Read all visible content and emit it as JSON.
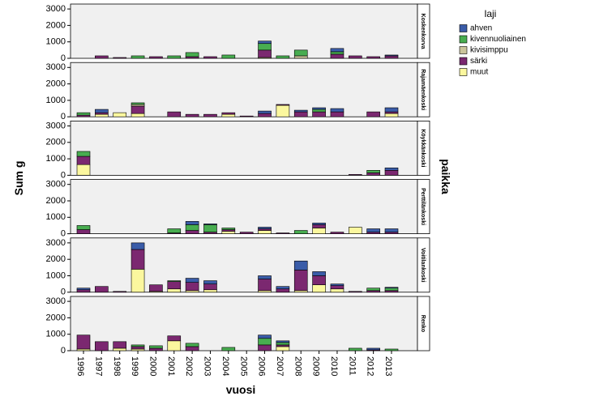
{
  "chart_data": {
    "type": "bar",
    "stacked": true,
    "y_label": "Sum g",
    "x_label": "vuosi",
    "facet_label": "paikka",
    "legend_title": "laji",
    "categories": [
      "1996",
      "1997",
      "1998",
      "1999",
      "2000",
      "2001",
      "2002",
      "2003",
      "2004",
      "2005",
      "2006",
      "2007",
      "2008",
      "2009",
      "2010",
      "2011",
      "2012",
      "2013"
    ],
    "series": [
      {
        "name": "ahven",
        "color": "#3a5ca8"
      },
      {
        "name": "kivennuoliainen",
        "color": "#48ad50"
      },
      {
        "name": "kivisimppu",
        "color": "#cbc59c"
      },
      {
        "name": "särki",
        "color": "#7b2870"
      },
      {
        "name": "muut",
        "color": "#fbf79e"
      }
    ],
    "ylim": [
      0,
      3300
    ],
    "yticks": [
      0,
      1000,
      2000,
      3000
    ],
    "facets": [
      {
        "title": "Koskenkorva",
        "series": [
          {
            "values": [
              0,
              0,
              0,
              0,
              0,
              0,
              0,
              0,
              0,
              0,
              150,
              0,
              0,
              0,
              200,
              0,
              0,
              50
            ]
          },
          {
            "values": [
              0,
              0,
              0,
              150,
              0,
              150,
              250,
              0,
              200,
              0,
              400,
              150,
              350,
              0,
              150,
              0,
              0,
              0
            ]
          },
          {
            "values": [
              0,
              0,
              0,
              0,
              0,
              0,
              0,
              0,
              0,
              0,
              0,
              0,
              150,
              0,
              0,
              0,
              0,
              0
            ]
          },
          {
            "values": [
              0,
              150,
              50,
              0,
              100,
              0,
              100,
              100,
              0,
              0,
              450,
              0,
              0,
              0,
              250,
              150,
              100,
              150
            ]
          },
          {
            "values": [
              0,
              0,
              0,
              0,
              0,
              0,
              0,
              0,
              0,
              0,
              50,
              0,
              0,
              0,
              0,
              0,
              0,
              0
            ]
          }
        ]
      },
      {
        "title": "Rajamäenkoski",
        "series": [
          {
            "values": [
              0,
              200,
              0,
              0,
              0,
              0,
              0,
              0,
              0,
              0,
              150,
              0,
              100,
              100,
              200,
              0,
              0,
              250
            ]
          },
          {
            "values": [
              150,
              0,
              0,
              100,
              0,
              0,
              0,
              0,
              0,
              0,
              0,
              0,
              0,
              150,
              0,
              0,
              0,
              0
            ]
          },
          {
            "values": [
              0,
              0,
              0,
              100,
              0,
              0,
              0,
              0,
              0,
              0,
              0,
              0,
              0,
              0,
              0,
              0,
              0,
              0
            ]
          },
          {
            "values": [
              100,
              100,
              0,
              450,
              0,
              300,
              150,
              150,
              100,
              50,
              200,
              50,
              300,
              300,
              300,
              0,
              300,
              100
            ]
          },
          {
            "values": [
              0,
              150,
              250,
              200,
              0,
              0,
              0,
              0,
              150,
              0,
              0,
              700,
              0,
              0,
              0,
              0,
              0,
              200
            ]
          }
        ]
      },
      {
        "title": "Köykkänkoski",
        "series": [
          {
            "values": [
              0,
              0,
              0,
              0,
              0,
              0,
              0,
              0,
              0,
              0,
              0,
              0,
              0,
              0,
              0,
              0,
              0,
              150
            ]
          },
          {
            "values": [
              300,
              0,
              0,
              0,
              0,
              0,
              0,
              0,
              0,
              0,
              0,
              0,
              0,
              0,
              0,
              0,
              150,
              0
            ]
          },
          {
            "values": [
              0,
              0,
              0,
              0,
              0,
              0,
              0,
              0,
              0,
              0,
              0,
              0,
              0,
              0,
              0,
              0,
              0,
              0
            ]
          },
          {
            "values": [
              500,
              0,
              0,
              0,
              0,
              0,
              0,
              0,
              0,
              0,
              0,
              0,
              0,
              0,
              0,
              50,
              150,
              300
            ]
          },
          {
            "values": [
              650,
              0,
              0,
              0,
              0,
              0,
              0,
              0,
              0,
              0,
              0,
              0,
              0,
              0,
              0,
              0,
              0,
              0
            ]
          }
        ]
      },
      {
        "title": "Perttilänkoski",
        "series": [
          {
            "values": [
              0,
              0,
              0,
              0,
              0,
              0,
              200,
              50,
              0,
              0,
              100,
              0,
              0,
              100,
              0,
              0,
              200,
              200
            ]
          },
          {
            "values": [
              250,
              0,
              0,
              0,
              0,
              250,
              350,
              450,
              100,
              0,
              0,
              0,
              200,
              0,
              0,
              0,
              0,
              0
            ]
          },
          {
            "values": [
              0,
              0,
              0,
              0,
              0,
              0,
              0,
              0,
              0,
              0,
              0,
              0,
              0,
              0,
              0,
              0,
              0,
              0
            ]
          },
          {
            "values": [
              250,
              0,
              0,
              0,
              0,
              50,
              200,
              100,
              100,
              100,
              100,
              50,
              0,
              200,
              100,
              0,
              100,
              100
            ]
          },
          {
            "values": [
              0,
              0,
              0,
              0,
              0,
              0,
              0,
              0,
              150,
              0,
              200,
              0,
              0,
              350,
              0,
              400,
              0,
              0
            ]
          }
        ]
      },
      {
        "title": "Voitilankoski",
        "series": [
          {
            "values": [
              100,
              0,
              0,
              400,
              0,
              0,
              250,
              200,
              0,
              0,
              200,
              150,
              550,
              250,
              100,
              0,
              0,
              50
            ]
          },
          {
            "values": [
              0,
              0,
              0,
              0,
              0,
              50,
              0,
              0,
              0,
              0,
              0,
              0,
              0,
              0,
              0,
              0,
              150,
              150
            ]
          },
          {
            "values": [
              0,
              0,
              0,
              0,
              0,
              0,
              0,
              0,
              0,
              0,
              0,
              0,
              0,
              0,
              0,
              0,
              0,
              0
            ]
          },
          {
            "values": [
              150,
              350,
              50,
              1200,
              400,
              450,
              500,
              350,
              0,
              0,
              700,
              200,
              1250,
              550,
              200,
              50,
              100,
              100
            ]
          },
          {
            "values": [
              0,
              0,
              0,
              1400,
              50,
              200,
              100,
              150,
              0,
              0,
              100,
              0,
              100,
              450,
              200,
              0,
              0,
              0
            ]
          }
        ]
      },
      {
        "title": "Renko",
        "series": [
          {
            "values": [
              0,
              0,
              0,
              0,
              0,
              0,
              0,
              0,
              0,
              0,
              200,
              100,
              0,
              0,
              0,
              0,
              100,
              0
            ]
          },
          {
            "values": [
              0,
              0,
              0,
              100,
              150,
              0,
              200,
              0,
              200,
              0,
              400,
              150,
              0,
              0,
              0,
              150,
              0,
              100
            ]
          },
          {
            "values": [
              0,
              0,
              0,
              0,
              0,
              0,
              0,
              0,
              0,
              0,
              0,
              0,
              0,
              0,
              0,
              0,
              0,
              0
            ]
          },
          {
            "values": [
              850,
              550,
              400,
              150,
              150,
              300,
              250,
              0,
              0,
              0,
              350,
              100,
              0,
              0,
              0,
              0,
              50,
              0
            ]
          },
          {
            "values": [
              100,
              0,
              150,
              100,
              0,
              600,
              0,
              0,
              0,
              0,
              0,
              250,
              0,
              0,
              0,
              0,
              0,
              0
            ]
          }
        ]
      }
    ]
  }
}
